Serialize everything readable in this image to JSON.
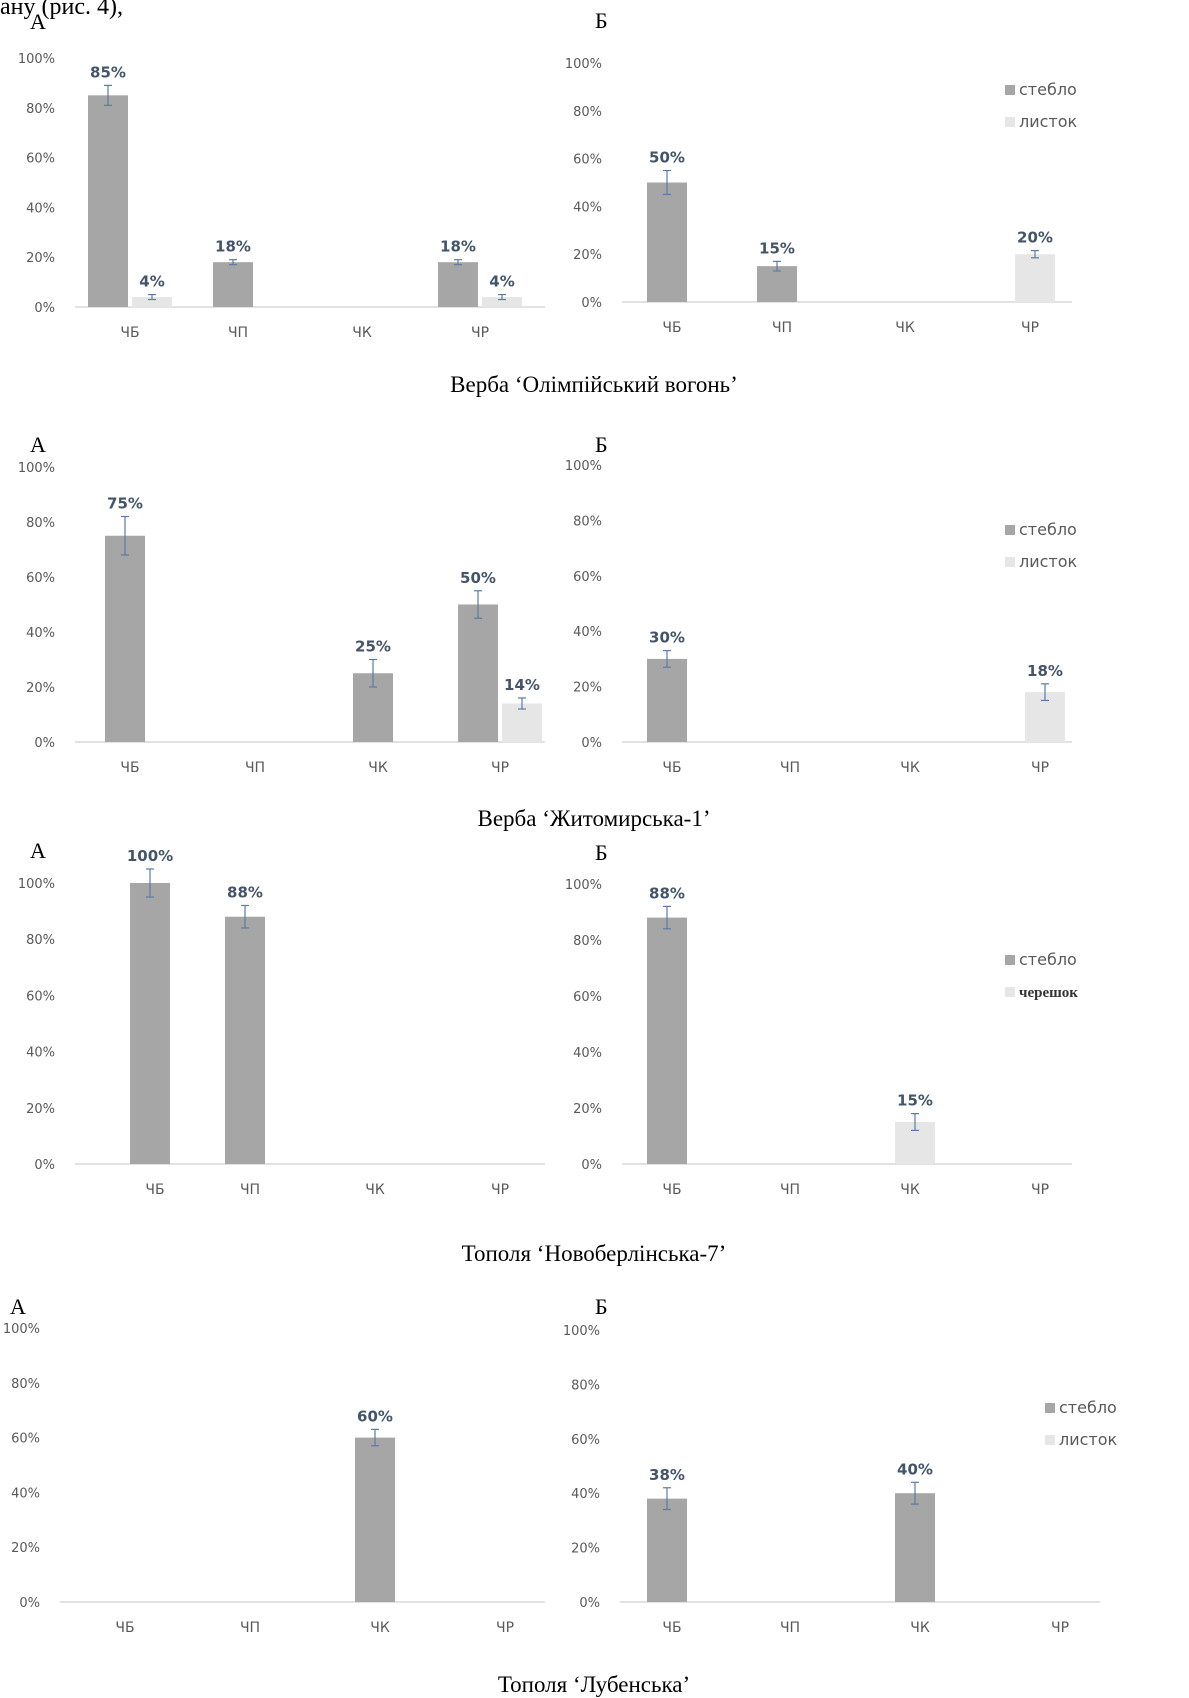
{
  "top_fragment": "ану (рис. 4),",
  "colors": {
    "stem": "#a6a6a6",
    "leaf": "#e6e6e6",
    "value_label": "#44546a",
    "axis_text": "#595959",
    "error_bar": "#5b7ba6",
    "baseline": "#d9d9d9"
  },
  "chart_data": [
    {
      "type": "bar",
      "panel": "А",
      "categories": [
        "ЧБ",
        "ЧП",
        "ЧК",
        "ЧР"
      ],
      "yticks": [
        "0%",
        "20%",
        "40%",
        "60%",
        "80%",
        "100%"
      ],
      "ylim": [
        0,
        100
      ],
      "series": [
        {
          "name": "стебло",
          "values": [
            85,
            18,
            null,
            18
          ],
          "labels": [
            "85%",
            "18%",
            null,
            "18%"
          ],
          "errors": [
            4,
            1,
            null,
            1
          ]
        },
        {
          "name": "листок",
          "values": [
            4,
            null,
            null,
            4
          ],
          "labels": [
            "4%",
            null,
            null,
            "4%"
          ],
          "errors": [
            1,
            null,
            null,
            1
          ]
        }
      ],
      "legend": null
    },
    {
      "type": "bar",
      "panel": "Б",
      "categories": [
        "ЧБ",
        "ЧП",
        "ЧК",
        "ЧР"
      ],
      "yticks": [
        "0%",
        "20%",
        "40%",
        "60%",
        "80%",
        "100%"
      ],
      "ylim": [
        0,
        100
      ],
      "series": [
        {
          "name": "стебло",
          "values": [
            50,
            15,
            null,
            null
          ],
          "labels": [
            "50%",
            "15%",
            null,
            null
          ],
          "errors": [
            5,
            2,
            null,
            null
          ]
        },
        {
          "name": "листок",
          "values": [
            null,
            null,
            null,
            20
          ],
          "labels": [
            null,
            null,
            null,
            "20%"
          ],
          "errors": [
            null,
            null,
            null,
            1.5
          ]
        }
      ],
      "legend": [
        "стебло",
        "листок"
      ]
    },
    {
      "type": "bar",
      "panel": "А",
      "categories": [
        "ЧБ",
        "ЧП",
        "ЧК",
        "ЧР"
      ],
      "yticks": [
        "0%",
        "20%",
        "40%",
        "60%",
        "80%",
        "100%"
      ],
      "ylim": [
        0,
        100
      ],
      "series": [
        {
          "name": "стебло",
          "values": [
            75,
            null,
            25,
            50
          ],
          "labels": [
            "75%",
            null,
            "25%",
            "50%"
          ],
          "errors": [
            7,
            null,
            5,
            5
          ]
        },
        {
          "name": "листок",
          "values": [
            null,
            null,
            null,
            14
          ],
          "labels": [
            null,
            null,
            null,
            "14%"
          ],
          "errors": [
            null,
            null,
            null,
            2
          ]
        }
      ],
      "legend": null
    },
    {
      "type": "bar",
      "panel": "Б",
      "categories": [
        "ЧБ",
        "ЧП",
        "ЧК",
        "ЧР"
      ],
      "yticks": [
        "0%",
        "20%",
        "40%",
        "60%",
        "80%",
        "100%"
      ],
      "ylim": [
        0,
        100
      ],
      "series": [
        {
          "name": "стебло",
          "values": [
            30,
            null,
            null,
            null
          ],
          "labels": [
            "30%",
            null,
            null,
            null
          ],
          "errors": [
            3,
            null,
            null,
            null
          ]
        },
        {
          "name": "листок",
          "values": [
            null,
            null,
            null,
            18
          ],
          "labels": [
            null,
            null,
            null,
            "18%"
          ],
          "errors": [
            null,
            null,
            null,
            3
          ]
        }
      ],
      "legend": [
        "стебло",
        "листок"
      ]
    },
    {
      "type": "bar",
      "panel": "А",
      "categories": [
        "ЧБ",
        "ЧП",
        "ЧК",
        "ЧР"
      ],
      "yticks": [
        "0%",
        "20%",
        "40%",
        "60%",
        "80%",
        "100%"
      ],
      "ylim": [
        0,
        100
      ],
      "series": [
        {
          "name": "стебло",
          "values": [
            100,
            88,
            null,
            null
          ],
          "labels": [
            "100%",
            "88%",
            null,
            null
          ],
          "errors": [
            5,
            4,
            null,
            null
          ]
        }
      ],
      "legend": null
    },
    {
      "type": "bar",
      "panel": "Б",
      "categories": [
        "ЧБ",
        "ЧП",
        "ЧК",
        "ЧР"
      ],
      "yticks": [
        "0%",
        "20%",
        "40%",
        "60%",
        "80%",
        "100%"
      ],
      "ylim": [
        0,
        100
      ],
      "series": [
        {
          "name": "стебло",
          "values": [
            88,
            null,
            null,
            null
          ],
          "labels": [
            "88%",
            null,
            null,
            null
          ],
          "errors": [
            4,
            null,
            null,
            null
          ]
        },
        {
          "name": "черешок",
          "values": [
            null,
            null,
            15,
            null
          ],
          "labels": [
            null,
            null,
            "15%",
            null
          ],
          "errors": [
            null,
            null,
            3,
            null
          ]
        }
      ],
      "legend": [
        "стебло",
        "черешок"
      ]
    },
    {
      "type": "bar",
      "panel": "А",
      "categories": [
        "ЧБ",
        "ЧП",
        "ЧК",
        "ЧР"
      ],
      "yticks": [
        "0%",
        "20%",
        "40%",
        "60%",
        "80%",
        "100%"
      ],
      "ylim": [
        0,
        100
      ],
      "series": [
        {
          "name": "стебло",
          "values": [
            null,
            null,
            60,
            null
          ],
          "labels": [
            null,
            null,
            "60%",
            null
          ],
          "errors": [
            null,
            null,
            3,
            null
          ]
        }
      ],
      "legend": null
    },
    {
      "type": "bar",
      "panel": "Б",
      "categories": [
        "ЧБ",
        "ЧП",
        "ЧК",
        "ЧР"
      ],
      "yticks": [
        "0%",
        "20%",
        "40%",
        "60%",
        "80%",
        "100%"
      ],
      "ylim": [
        0,
        100
      ],
      "series": [
        {
          "name": "стебло",
          "values": [
            38,
            null,
            40,
            null
          ],
          "labels": [
            "38%",
            null,
            "40%",
            null
          ],
          "errors": [
            4,
            null,
            4,
            null
          ]
        },
        {
          "name": "листок",
          "values": [
            null,
            null,
            null,
            null
          ],
          "labels": [
            null,
            null,
            null,
            null
          ],
          "errors": [
            null,
            null,
            null,
            null
          ]
        }
      ],
      "legend": [
        "стебло",
        "листок"
      ]
    }
  ],
  "captions": [
    "Верба ‘Олімпійський вогонь’",
    "Верба ‘Житомирська-1’",
    "Тополя ‘Новоберлінська-7’",
    "Тополя ‘Лубенська’"
  ]
}
